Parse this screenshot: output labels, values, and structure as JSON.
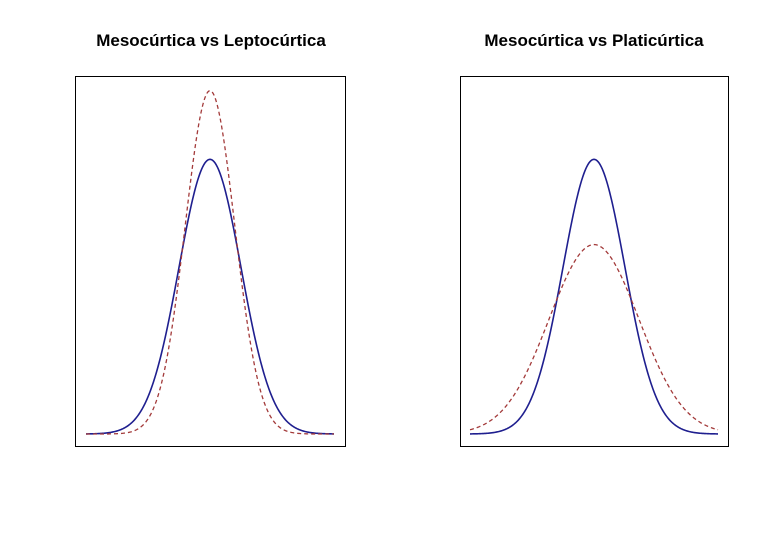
{
  "colors": {
    "background": "#ffffff",
    "frame": "#000000",
    "mesokurtic": "#1f1f8f",
    "comparison": "#a33a3a"
  },
  "chart_data": [
    {
      "type": "line",
      "title": "Mesocúrtica vs Leptocúrtica",
      "xlabel": "",
      "ylabel": "",
      "xlim": [
        -4,
        4
      ],
      "ylim": [
        0,
        0.52
      ],
      "axes_shown": false,
      "grid": false,
      "series": [
        {
          "values_kind": "normal_density",
          "mean": 0,
          "sd": 1.0,
          "line_style": "solid",
          "color": "#1f1f8f"
        },
        {
          "values_kind": "normal_density",
          "mean": 0,
          "sd": 0.8,
          "line_style": "dashed",
          "color": "#a33a3a"
        }
      ]
    },
    {
      "type": "line",
      "title": "Mesocúrtica vs Platicúrtica",
      "xlabel": "",
      "ylabel": "",
      "xlim": [
        -4,
        4
      ],
      "ylim": [
        0,
        0.52
      ],
      "axes_shown": false,
      "grid": false,
      "series": [
        {
          "values_kind": "normal_density",
          "mean": 0,
          "sd": 1.0,
          "line_style": "solid",
          "color": "#1f1f8f"
        },
        {
          "values_kind": "normal_density",
          "mean": 0,
          "sd": 1.45,
          "line_style": "dashed",
          "color": "#a33a3a"
        }
      ]
    }
  ]
}
